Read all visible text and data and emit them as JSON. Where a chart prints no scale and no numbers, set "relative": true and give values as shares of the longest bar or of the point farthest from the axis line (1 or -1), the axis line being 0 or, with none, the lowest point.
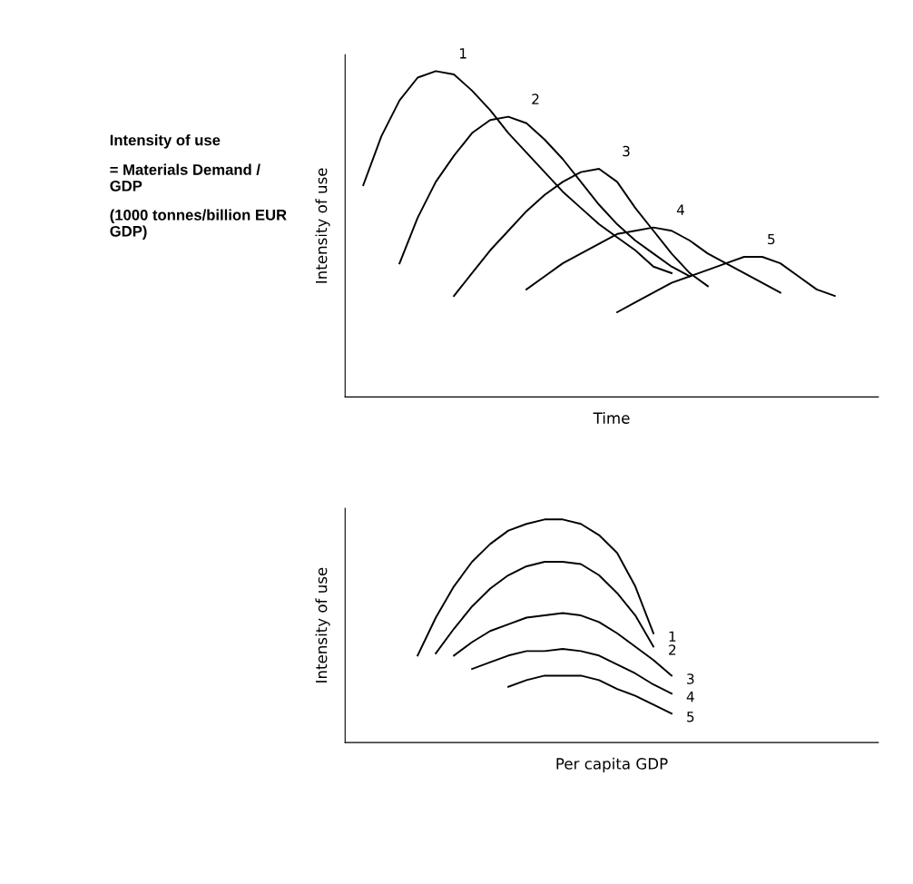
{
  "chart_data": [
    {
      "type": "line",
      "relative": true,
      "xlabel": "Time",
      "ylabel": "Intensity of use",
      "legend": false,
      "marker": "none",
      "line_style": "solid",
      "annotations": [
        "Intensity of use",
        "= Materials Demand / GDP",
        "(1000 tonnes/billion EUR GDP)"
      ],
      "categories": [
        null,
        null,
        null,
        null,
        null,
        null,
        null,
        null,
        null,
        null,
        null,
        null,
        null,
        null,
        null,
        null,
        null,
        null,
        null,
        null,
        null,
        null,
        null,
        null,
        null,
        null,
        null
      ],
      "series": [
        {
          "name": "1",
          "color": "#000000",
          "values": [
            0.65,
            0.8,
            0.91,
            0.98,
            1.0,
            0.99,
            0.94,
            0.88,
            0.81,
            0.75,
            0.69,
            0.63,
            0.58,
            0.53,
            0.49,
            0.45,
            0.4,
            0.38,
            null,
            null,
            null,
            null,
            null,
            null,
            null,
            null,
            null
          ]
        },
        {
          "name": "2",
          "color": "#000000",
          "values": [
            null,
            null,
            0.41,
            0.55,
            0.66,
            0.74,
            0.81,
            0.85,
            0.86,
            0.84,
            0.79,
            0.73,
            0.66,
            0.59,
            0.53,
            0.48,
            0.44,
            0.4,
            0.37,
            null,
            null,
            null,
            null,
            null,
            null,
            null,
            null
          ]
        },
        {
          "name": "3",
          "color": "#000000",
          "values": [
            null,
            null,
            null,
            null,
            null,
            0.31,
            0.38,
            0.45,
            0.51,
            0.57,
            0.62,
            0.66,
            0.69,
            0.7,
            0.66,
            0.58,
            0.51,
            0.44,
            0.38,
            0.34,
            null,
            null,
            null,
            null,
            null,
            null,
            null
          ]
        },
        {
          "name": "4",
          "color": "#000000",
          "values": [
            null,
            null,
            null,
            null,
            null,
            null,
            null,
            null,
            null,
            0.33,
            0.37,
            0.41,
            0.44,
            0.47,
            0.5,
            0.51,
            0.52,
            0.51,
            0.48,
            0.44,
            0.41,
            0.38,
            0.35,
            0.32,
            null,
            null,
            null
          ]
        },
        {
          "name": "5",
          "color": "#000000",
          "values": [
            null,
            null,
            null,
            null,
            null,
            null,
            null,
            null,
            null,
            null,
            null,
            null,
            null,
            null,
            0.26,
            0.29,
            0.32,
            0.35,
            0.37,
            0.39,
            0.41,
            0.43,
            0.43,
            0.41,
            0.37,
            0.33,
            0.31
          ]
        }
      ]
    },
    {
      "type": "line",
      "relative": true,
      "xlabel": "Per capita GDP",
      "ylabel": "Intensity of use",
      "legend": false,
      "marker": "none",
      "line_style": "solid",
      "categories": [
        null,
        null,
        null,
        null,
        null,
        null,
        null,
        null,
        null,
        null,
        null,
        null,
        null,
        null,
        null,
        null,
        null,
        null,
        null,
        null,
        null,
        null,
        null,
        null,
        null,
        null,
        null
      ],
      "series": [
        {
          "name": "1",
          "color": "#000000",
          "values": [
            null,
            null,
            null,
            0.39,
            0.56,
            0.7,
            0.81,
            0.89,
            0.95,
            0.98,
            1.0,
            1.0,
            0.98,
            0.93,
            0.85,
            0.7,
            0.49,
            null,
            null,
            null,
            null,
            null,
            null,
            null,
            null,
            null,
            null
          ]
        },
        {
          "name": "2",
          "color": "#000000",
          "values": [
            null,
            null,
            null,
            null,
            0.4,
            0.51,
            0.61,
            0.69,
            0.75,
            0.79,
            0.81,
            0.81,
            0.8,
            0.75,
            0.67,
            0.57,
            0.43,
            null,
            null,
            null,
            null,
            null,
            null,
            null,
            null,
            null,
            null
          ]
        },
        {
          "name": "3",
          "color": "#000000",
          "values": [
            null,
            null,
            null,
            null,
            null,
            0.39,
            0.45,
            0.5,
            0.53,
            0.56,
            0.57,
            0.58,
            0.57,
            0.54,
            0.49,
            0.43,
            0.37,
            0.3,
            null,
            null,
            null,
            null,
            null,
            null,
            null,
            null,
            null
          ]
        },
        {
          "name": "4",
          "color": "#000000",
          "values": [
            null,
            null,
            null,
            null,
            null,
            null,
            0.33,
            0.36,
            0.39,
            0.41,
            0.41,
            0.42,
            0.41,
            0.39,
            0.35,
            0.31,
            0.26,
            0.22,
            null,
            null,
            null,
            null,
            null,
            null,
            null,
            null,
            null
          ]
        },
        {
          "name": "5",
          "color": "#000000",
          "values": [
            null,
            null,
            null,
            null,
            null,
            null,
            null,
            null,
            0.25,
            0.28,
            0.3,
            0.3,
            0.3,
            0.28,
            0.24,
            0.21,
            0.17,
            0.13,
            null,
            null,
            null,
            null,
            null,
            null,
            null,
            null,
            null
          ]
        }
      ]
    }
  ]
}
